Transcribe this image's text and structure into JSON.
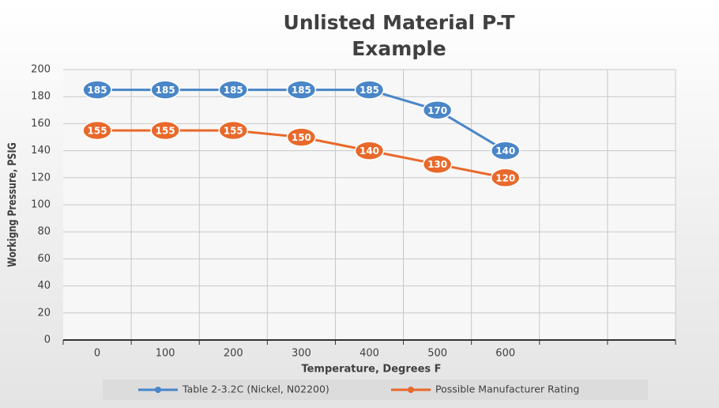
{
  "chart_data": {
    "type": "line",
    "title": "Unlisted Material P-T Example",
    "x_label": "Temperature, Degrees F",
    "y_label": "Workigng Pressure, PSIG",
    "categories": [
      "0",
      "100",
      "200",
      "300",
      "400",
      "500",
      "600",
      null,
      null
    ],
    "series": [
      {
        "name": "Table 2-3.2C (Nickel, N02200)",
        "color": "#4a86c8",
        "values": [
          185,
          185,
          185,
          185,
          185,
          170,
          140,
          null,
          null
        ]
      },
      {
        "name": "Possible Manufacturer Rating",
        "color": "#e8692b",
        "values": [
          155,
          155,
          155,
          150,
          140,
          130,
          120,
          null,
          null
        ]
      }
    ],
    "ylim": [
      0,
      200
    ],
    "yticks": [
      0,
      20,
      40,
      60,
      80,
      100,
      120,
      140,
      160,
      180,
      200
    ],
    "grid": true,
    "legend": "bottom"
  }
}
